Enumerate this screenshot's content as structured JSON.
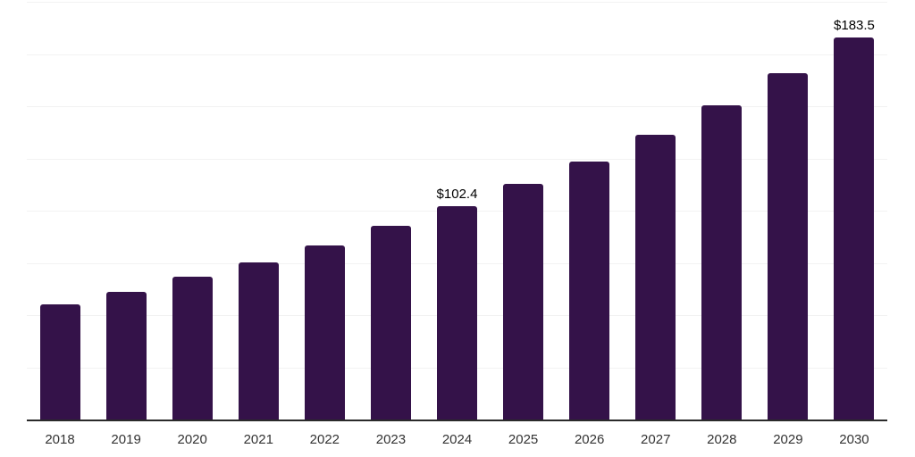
{
  "chart_data": {
    "type": "bar",
    "title": "",
    "xlabel": "",
    "ylabel": "",
    "categories": [
      "2018",
      "2019",
      "2020",
      "2021",
      "2022",
      "2023",
      "2024",
      "2025",
      "2026",
      "2027",
      "2028",
      "2029",
      "2030"
    ],
    "values": [
      55.5,
      61.7,
      68.8,
      75.8,
      83.7,
      93.2,
      102.4,
      113.1,
      123.9,
      136.7,
      150.8,
      166.4,
      183.5
    ],
    "value_labels": [
      "",
      "",
      "",
      "",
      "",
      "",
      "$102.4",
      "",
      "",
      "",
      "",
      "",
      "$183.5"
    ],
    "ylim": [
      0,
      200
    ],
    "grid_step": 25,
    "grid": true,
    "legend_position": "none",
    "currency_prefix": "$"
  },
  "colors": {
    "bar": "#341249",
    "gridline": "#f2f2f2",
    "axis_line": "#2a2a2a",
    "tick_label": "#333333",
    "value_label": "#000000",
    "background": "#ffffff"
  }
}
